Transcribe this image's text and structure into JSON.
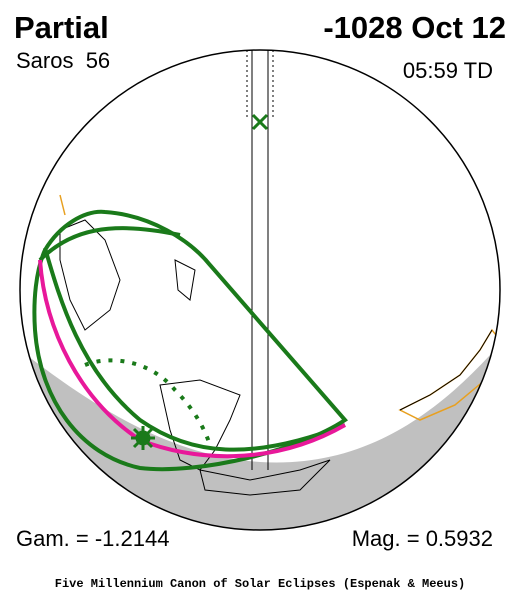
{
  "header": {
    "title": "Partial",
    "date": "-1028 Oct 12",
    "saros": "Saros  56",
    "time": "05:59 TD"
  },
  "footer": {
    "gamma": "Gam. = -1.2144",
    "magnitude": "Mag. = 0.5932",
    "credit": "Five Millennium Canon of Solar Eclipses (Espenak & Meeus)"
  }
}
